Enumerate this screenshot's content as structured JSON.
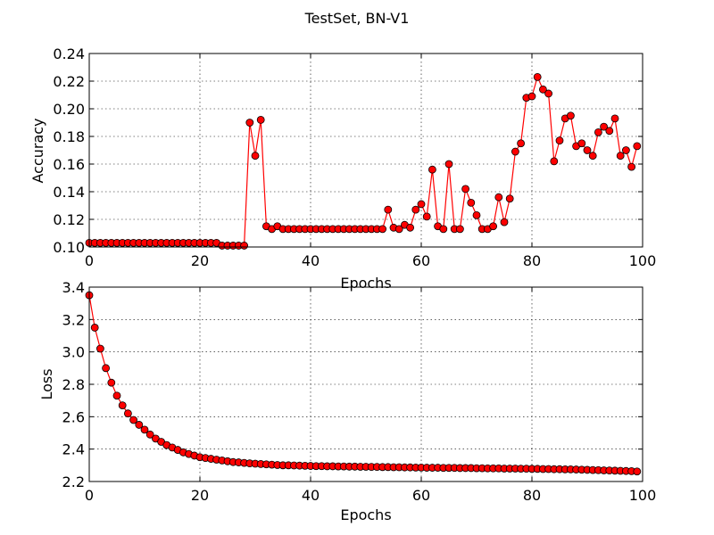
{
  "figure_title": "TestSet, BN-V1",
  "chart_data": [
    {
      "type": "line",
      "xlabel": "Epochs",
      "ylabel": "Accuracy",
      "xlim": [
        0,
        100
      ],
      "ylim": [
        0.1,
        0.24
      ],
      "xticks": [
        0,
        20,
        40,
        60,
        80,
        100
      ],
      "yticks": [
        0.1,
        0.12,
        0.14,
        0.16,
        0.18,
        0.2,
        0.22,
        0.24
      ],
      "ytick_decimals": 2,
      "grid": true,
      "color": "#ff0000",
      "x": [
        0,
        1,
        2,
        3,
        4,
        5,
        6,
        7,
        8,
        9,
        10,
        11,
        12,
        13,
        14,
        15,
        16,
        17,
        18,
        19,
        20,
        21,
        22,
        23,
        24,
        25,
        26,
        27,
        28,
        29,
        30,
        31,
        32,
        33,
        34,
        35,
        36,
        37,
        38,
        39,
        40,
        41,
        42,
        43,
        44,
        45,
        46,
        47,
        48,
        49,
        50,
        51,
        52,
        53,
        54,
        55,
        56,
        57,
        58,
        59,
        60,
        61,
        62,
        63,
        64,
        65,
        66,
        67,
        68,
        69,
        70,
        71,
        72,
        73,
        74,
        75,
        76,
        77,
        78,
        79,
        80,
        81,
        82,
        83,
        84,
        85,
        86,
        87,
        88,
        89,
        90,
        91,
        92,
        93,
        94,
        95,
        96,
        97,
        98,
        99
      ],
      "values": [
        0.103,
        0.103,
        0.103,
        0.103,
        0.103,
        0.103,
        0.103,
        0.103,
        0.103,
        0.103,
        0.103,
        0.103,
        0.103,
        0.103,
        0.103,
        0.103,
        0.103,
        0.103,
        0.103,
        0.103,
        0.103,
        0.103,
        0.103,
        0.103,
        0.101,
        0.101,
        0.101,
        0.101,
        0.101,
        0.19,
        0.166,
        0.192,
        0.115,
        0.113,
        0.115,
        0.113,
        0.113,
        0.113,
        0.113,
        0.113,
        0.113,
        0.113,
        0.113,
        0.113,
        0.113,
        0.113,
        0.113,
        0.113,
        0.113,
        0.113,
        0.113,
        0.113,
        0.113,
        0.113,
        0.127,
        0.114,
        0.113,
        0.116,
        0.114,
        0.127,
        0.131,
        0.122,
        0.156,
        0.115,
        0.113,
        0.16,
        0.113,
        0.113,
        0.142,
        0.132,
        0.123,
        0.113,
        0.113,
        0.115,
        0.136,
        0.118,
        0.135,
        0.169,
        0.175,
        0.208,
        0.209,
        0.223,
        0.214,
        0.211,
        0.162,
        0.177,
        0.193,
        0.195,
        0.173,
        0.175,
        0.17,
        0.166,
        0.183,
        0.187,
        0.184,
        0.193,
        0.166,
        0.17,
        0.158,
        0.173
      ]
    },
    {
      "type": "line",
      "xlabel": "Epochs",
      "ylabel": "Loss",
      "xlim": [
        0,
        100
      ],
      "ylim": [
        2.2,
        3.4
      ],
      "xticks": [
        0,
        20,
        40,
        60,
        80,
        100
      ],
      "yticks": [
        2.2,
        2.4,
        2.6,
        2.8,
        3.0,
        3.2,
        3.4
      ],
      "ytick_decimals": 1,
      "grid": true,
      "color": "#ff0000",
      "x": [
        0,
        1,
        2,
        3,
        4,
        5,
        6,
        7,
        8,
        9,
        10,
        11,
        12,
        13,
        14,
        15,
        16,
        17,
        18,
        19,
        20,
        21,
        22,
        23,
        24,
        25,
        26,
        27,
        28,
        29,
        30,
        31,
        32,
        33,
        34,
        35,
        36,
        37,
        38,
        39,
        40,
        41,
        42,
        43,
        44,
        45,
        46,
        47,
        48,
        49,
        50,
        51,
        52,
        53,
        54,
        55,
        56,
        57,
        58,
        59,
        60,
        61,
        62,
        63,
        64,
        65,
        66,
        67,
        68,
        69,
        70,
        71,
        72,
        73,
        74,
        75,
        76,
        77,
        78,
        79,
        80,
        81,
        82,
        83,
        84,
        85,
        86,
        87,
        88,
        89,
        90,
        91,
        92,
        93,
        94,
        95,
        96,
        97,
        98,
        99
      ],
      "values": [
        3.35,
        3.15,
        3.02,
        2.9,
        2.81,
        2.73,
        2.67,
        2.62,
        2.58,
        2.55,
        2.52,
        2.49,
        2.465,
        2.445,
        2.425,
        2.41,
        2.395,
        2.38,
        2.37,
        2.36,
        2.35,
        2.345,
        2.34,
        2.335,
        2.33,
        2.325,
        2.32,
        2.318,
        2.315,
        2.312,
        2.31,
        2.308,
        2.306,
        2.304,
        2.302,
        2.3,
        2.3,
        2.299,
        2.298,
        2.297,
        2.296,
        2.295,
        2.295,
        2.294,
        2.294,
        2.293,
        2.293,
        2.292,
        2.292,
        2.291,
        2.291,
        2.29,
        2.29,
        2.289,
        2.289,
        2.288,
        2.288,
        2.287,
        2.287,
        2.286,
        2.286,
        2.285,
        2.285,
        2.285,
        2.284,
        2.284,
        2.284,
        2.283,
        2.283,
        2.283,
        2.282,
        2.282,
        2.281,
        2.281,
        2.281,
        2.28,
        2.28,
        2.28,
        2.279,
        2.279,
        2.278,
        2.278,
        2.277,
        2.277,
        2.276,
        2.276,
        2.275,
        2.275,
        2.274,
        2.273,
        2.272,
        2.271,
        2.27,
        2.269,
        2.268,
        2.267,
        2.266,
        2.265,
        2.264,
        2.262
      ]
    }
  ]
}
